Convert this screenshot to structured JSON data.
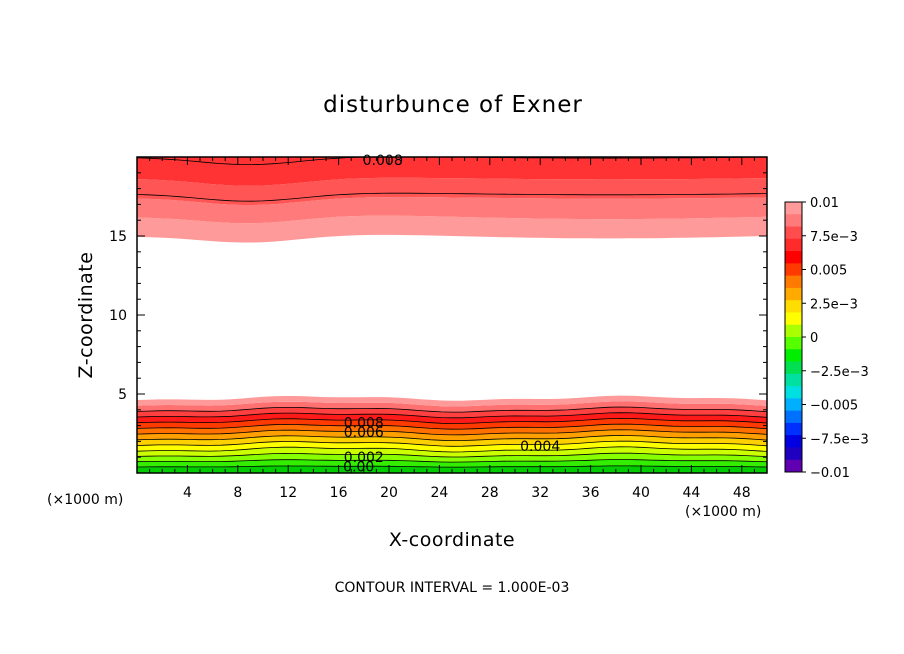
{
  "chart_data": {
    "type": "heatmap",
    "title": "disturbunce of Exner",
    "xlabel": "X-coordinate",
    "ylabel": "Z-coordinate",
    "x_unit_label_left": "(×1000 m)",
    "x_unit_label_right": "(×1000 m)",
    "footer": "CONTOUR INTERVAL = 1.000E-03",
    "xlim": [
      0,
      50
    ],
    "ylim": [
      0,
      20
    ],
    "x_ticks": [
      4,
      8,
      12,
      16,
      20,
      24,
      28,
      32,
      36,
      40,
      44,
      48
    ],
    "y_ticks": [
      5,
      10,
      15
    ],
    "x_tick_labels": [
      "4",
      "8",
      "12",
      "16",
      "20",
      "24",
      "28",
      "32",
      "36",
      "40",
      "44",
      "48"
    ],
    "y_tick_labels": [
      "5",
      "10",
      "15"
    ],
    "contour_interval": 0.001,
    "colorbar": {
      "min": -0.01,
      "max": 0.01,
      "labels": [
        "0.01",
        "7.5e−3",
        "0.005",
        "2.5e−3",
        "0",
        "−2.5e−3",
        "−0.005",
        "−7.5e−3",
        "−0.01"
      ],
      "colors": [
        "#ff9a9a",
        "#ff7a7a",
        "#ff4d4d",
        "#ff2a2a",
        "#ff0000",
        "#ff3a00",
        "#ff7a00",
        "#ffaa00",
        "#ffdd00",
        "#ffff00",
        "#aaff00",
        "#55ff00",
        "#00ee00",
        "#00e050",
        "#00e0a0",
        "#00e0e0",
        "#00b0ff",
        "#0070ff",
        "#0030ff",
        "#0000e0",
        "#2000c0",
        "#6000b0"
      ]
    },
    "contour_labels": [
      {
        "text": "0.008",
        "x": 19.5,
        "z": 19.8
      },
      {
        "text": "0.008",
        "x": 18,
        "z": 3.2
      },
      {
        "text": "0.006",
        "x": 18,
        "z": 2.6
      },
      {
        "text": "0.004",
        "x": 32,
        "z": 1.7
      },
      {
        "text": "0.002",
        "x": 18,
        "z": 1.0
      },
      {
        "text": "0.00",
        "x": 17.6,
        "z": 0.4
      }
    ]
  }
}
